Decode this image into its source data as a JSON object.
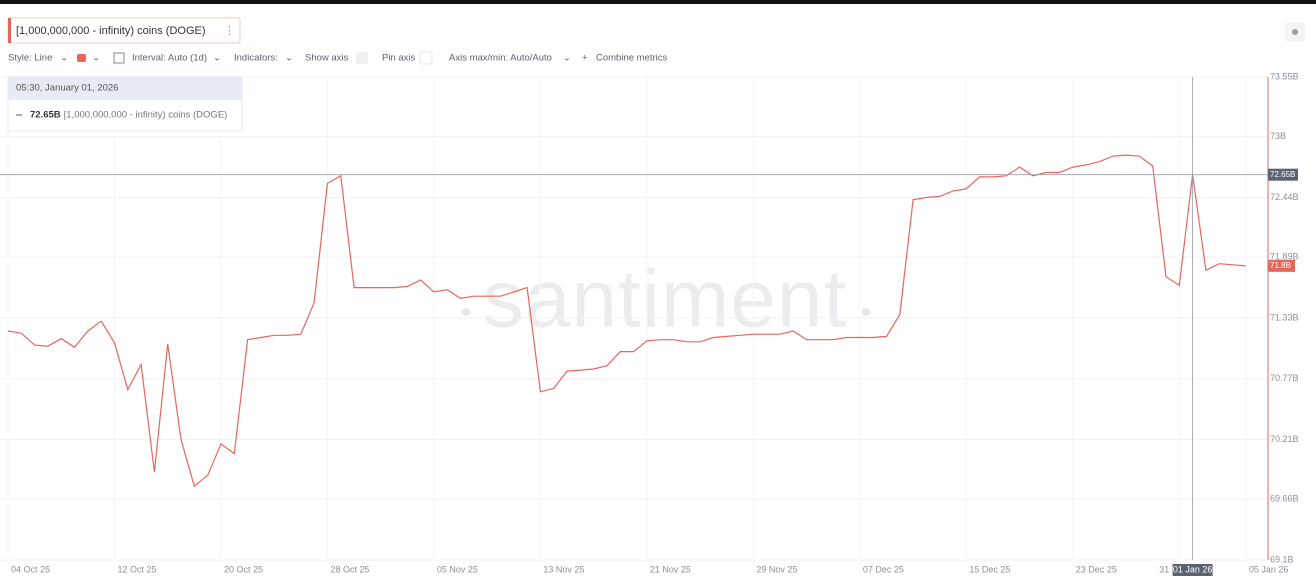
{
  "toolbar": {
    "style": "Style: Line",
    "interval": "Interval: Auto (1d)",
    "indicators": "Indicators:",
    "show_axis": "Show axis",
    "pin_axis": "Pin axis",
    "axis_minmax": "Axis max/min: Auto/Auto",
    "combine": "Combine metrics"
  },
  "tooltip": {
    "date": "05:30, January 01, 2026"
  },
  "watermark": "santiment",
  "chart_data": {
    "type": "line",
    "grid": true,
    "hover_x": "2026-01-01",
    "x": [
      "2025-10-04",
      "2025-10-05",
      "2025-10-06",
      "2025-10-07",
      "2025-10-08",
      "2025-10-09",
      "2025-10-10",
      "2025-10-11",
      "2025-10-12",
      "2025-10-13",
      "2025-10-14",
      "2025-10-15",
      "2025-10-16",
      "2025-10-17",
      "2025-10-18",
      "2025-10-19",
      "2025-10-20",
      "2025-10-21",
      "2025-10-22",
      "2025-10-23",
      "2025-10-24",
      "2025-10-25",
      "2025-10-26",
      "2025-10-27",
      "2025-10-28",
      "2025-10-29",
      "2025-10-30",
      "2025-10-31",
      "2025-11-01",
      "2025-11-02",
      "2025-11-03",
      "2025-11-04",
      "2025-11-05",
      "2025-11-06",
      "2025-11-07",
      "2025-11-08",
      "2025-11-09",
      "2025-11-10",
      "2025-11-11",
      "2025-11-12",
      "2025-11-13",
      "2025-11-14",
      "2025-11-15",
      "2025-11-16",
      "2025-11-17",
      "2025-11-18",
      "2025-11-19",
      "2025-11-20",
      "2025-11-21",
      "2025-11-22",
      "2025-11-23",
      "2025-11-24",
      "2025-11-25",
      "2025-11-26",
      "2025-11-27",
      "2025-11-28",
      "2025-11-29",
      "2025-11-30",
      "2025-12-01",
      "2025-12-02",
      "2025-12-03",
      "2025-12-04",
      "2025-12-05",
      "2025-12-06",
      "2025-12-07",
      "2025-12-08",
      "2025-12-09",
      "2025-12-10",
      "2025-12-11",
      "2025-12-12",
      "2025-12-13",
      "2025-12-14",
      "2025-12-15",
      "2025-12-16",
      "2025-12-17",
      "2025-12-18",
      "2025-12-19",
      "2025-12-20",
      "2025-12-21",
      "2025-12-22",
      "2025-12-23",
      "2025-12-24",
      "2025-12-25",
      "2025-12-26",
      "2025-12-27",
      "2025-12-28",
      "2025-12-29",
      "2025-12-30",
      "2025-12-31",
      "2026-01-01",
      "2026-01-02",
      "2026-01-03",
      "2026-01-04",
      "2026-01-05"
    ],
    "series": [
      {
        "name": "[1,000,000,000 - infinity) coins (DOGE)",
        "color": "#e5675c",
        "values": [
          71.21,
          71.19,
          71.08,
          71.07,
          71.14,
          71.06,
          71.21,
          71.3,
          71.1,
          70.67,
          70.9,
          69.91,
          71.09,
          70.21,
          69.78,
          69.88,
          70.17,
          70.08,
          71.13,
          71.15,
          71.17,
          71.17,
          71.18,
          71.47,
          72.57,
          72.64,
          71.61,
          71.61,
          71.61,
          71.61,
          71.62,
          71.68,
          71.57,
          71.59,
          71.51,
          71.53,
          71.53,
          71.53,
          71.57,
          71.61,
          70.65,
          70.68,
          70.84,
          70.85,
          70.86,
          70.89,
          71.02,
          71.02,
          71.12,
          71.13,
          71.13,
          71.11,
          71.11,
          71.15,
          71.16,
          71.17,
          71.18,
          71.18,
          71.18,
          71.21,
          71.13,
          71.13,
          71.13,
          71.15,
          71.15,
          71.15,
          71.16,
          71.36,
          72.42,
          72.44,
          72.45,
          72.5,
          72.52,
          72.63,
          72.63,
          72.64,
          72.72,
          72.64,
          72.67,
          72.67,
          72.72,
          72.74,
          72.77,
          72.82,
          72.83,
          72.82,
          72.73,
          71.71,
          71.63,
          72.65,
          71.77,
          71.83,
          71.82,
          71.81
        ],
        "value_labels": [
          null,
          null,
          null,
          null,
          null,
          null,
          null,
          null,
          null,
          null,
          null,
          null,
          null,
          null,
          null,
          null,
          null,
          null,
          null,
          null,
          null,
          null,
          null,
          null,
          null,
          null,
          null,
          null,
          null,
          null,
          null,
          null,
          null,
          null,
          null,
          null,
          null,
          null,
          null,
          null,
          null,
          null,
          null,
          null,
          null,
          null,
          null,
          null,
          null,
          null,
          null,
          null,
          null,
          null,
          null,
          null,
          null,
          null,
          null,
          null,
          null,
          null,
          null,
          null,
          null,
          null,
          null,
          null,
          null,
          null,
          null,
          null,
          null,
          null,
          null,
          null,
          null,
          null,
          null,
          null,
          null,
          null,
          null,
          null,
          null,
          null,
          null,
          null,
          null,
          "72.65B",
          null,
          null,
          null,
          "71.8B"
        ]
      }
    ],
    "ylim": [
      69.1,
      73.55
    ],
    "yticks": [
      {
        "value": 73.55,
        "label": "73.55B"
      },
      {
        "value": 73,
        "label": "73B"
      },
      {
        "value": 72.44,
        "label": "72.44B"
      },
      {
        "value": 71.89,
        "label": "71.89B"
      },
      {
        "value": 71.33,
        "label": "71.33B"
      },
      {
        "value": 70.77,
        "label": "70.77B"
      },
      {
        "value": 70.21,
        "label": "70.21B"
      },
      {
        "value": 69.66,
        "label": "69.66B"
      },
      {
        "value": 69.1,
        "label": "69.1B"
      }
    ],
    "xticks": [
      {
        "value": "2025-10-04",
        "label": "04 Oct 25"
      },
      {
        "value": "2025-10-12",
        "label": "12 Oct 25"
      },
      {
        "value": "2025-10-20",
        "label": "20 Oct 25"
      },
      {
        "value": "2025-10-28",
        "label": "28 Oct 25"
      },
      {
        "value": "2025-11-05",
        "label": "05 Nov 25"
      },
      {
        "value": "2025-11-13",
        "label": "13 Nov 25"
      },
      {
        "value": "2025-11-21",
        "label": "21 Nov 25"
      },
      {
        "value": "2025-11-29",
        "label": "29 Nov 25"
      },
      {
        "value": "2025-12-07",
        "label": "07 Dec 25"
      },
      {
        "value": "2025-12-15",
        "label": "15 Dec 25"
      },
      {
        "value": "2025-12-23",
        "label": "23 Dec 25"
      },
      {
        "value": "2025-12-31",
        "label": "31"
      },
      {
        "value": "2026-01-01",
        "label": "01 Jan 26"
      },
      {
        "value": "2026-01-05",
        "label": "05 Jan 26"
      }
    ]
  }
}
